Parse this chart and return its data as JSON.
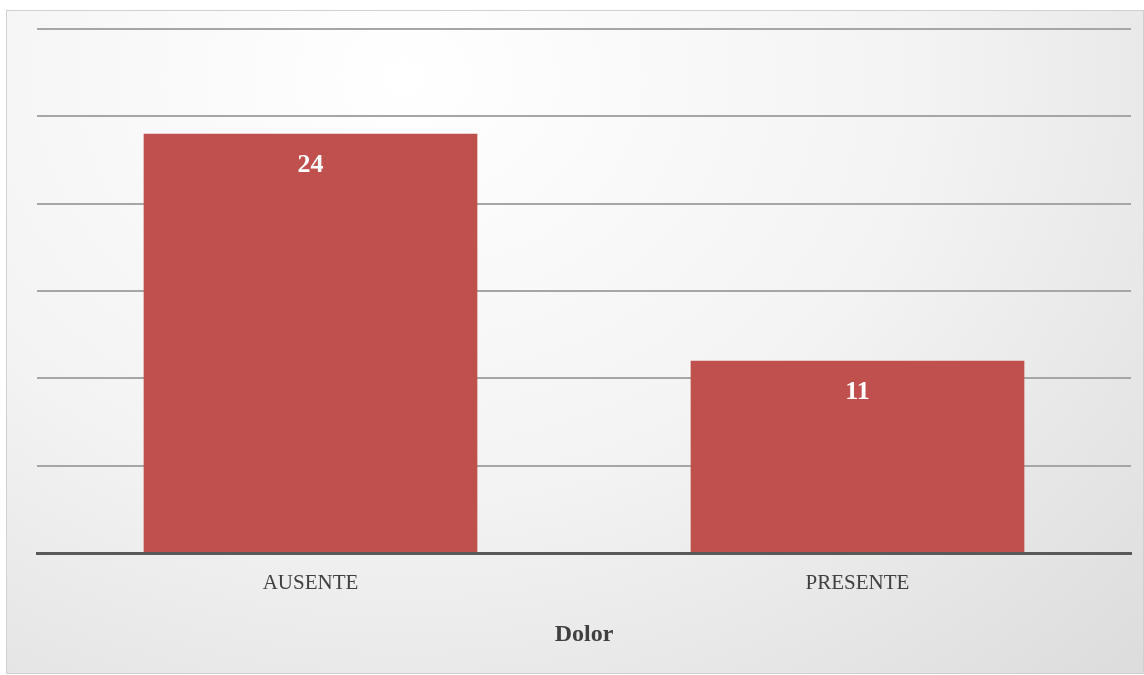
{
  "chart_data": {
    "type": "bar",
    "xlabel": "Dolor",
    "categories": [
      "AUSENTE",
      "PRESENTE"
    ],
    "values": [
      24,
      11
    ],
    "color": "#c0504d",
    "ylim": [
      0,
      30
    ],
    "yticks": [
      {
        "value": 0,
        "label": null
      },
      {
        "value": 5,
        "label": null
      },
      {
        "value": 10,
        "label": null
      },
      {
        "value": 15,
        "label": null
      },
      {
        "value": 20,
        "label": null
      },
      {
        "value": 25,
        "label": null
      },
      {
        "value": 30,
        "label": null
      }
    ],
    "grid": "y",
    "tick_labels": "x",
    "data_labels": true
  }
}
